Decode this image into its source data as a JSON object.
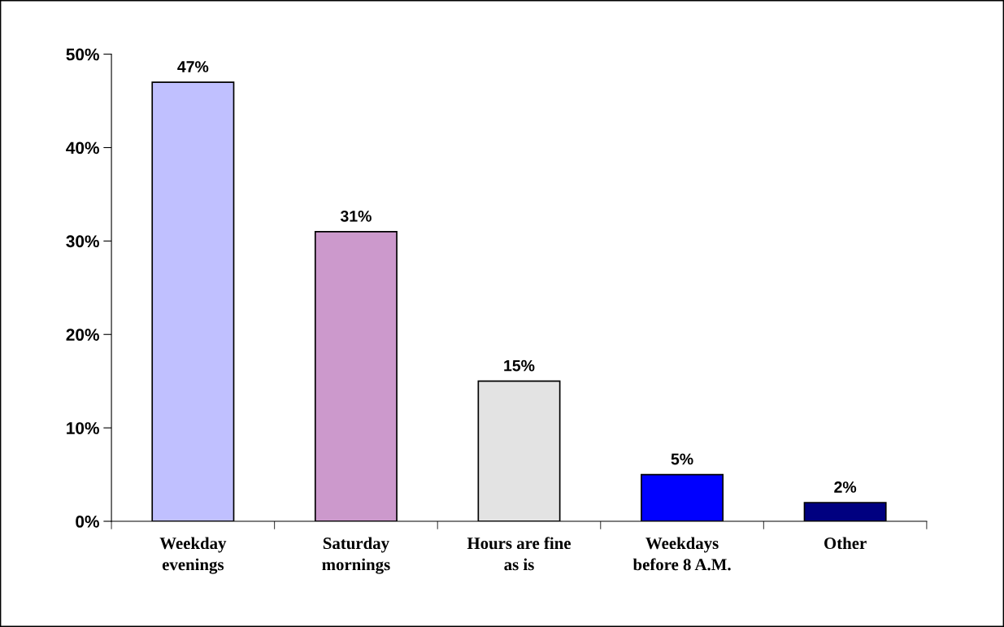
{
  "chart_data": {
    "type": "bar",
    "categories": [
      "Weekday\nevenings",
      "Saturday\nmornings",
      "Hours are fine\nas is",
      "Weekdays\nbefore 8 A.M.",
      "Other"
    ],
    "values": [
      47,
      31,
      15,
      5,
      2
    ],
    "colors": [
      "#c0c0ff",
      "#cc99cc",
      "#e3e3e3",
      "#0000ff",
      "#000080"
    ],
    "value_labels": [
      "47%",
      "31%",
      "15%",
      "5%",
      "2%"
    ],
    "ylim": [
      0,
      50
    ],
    "yticks": [
      {
        "value": 0,
        "label": "0%"
      },
      {
        "value": 10,
        "label": "10%"
      },
      {
        "value": 20,
        "label": "20%"
      },
      {
        "value": 30,
        "label": "30%"
      },
      {
        "value": 40,
        "label": "40%"
      },
      {
        "value": 50,
        "label": "50%"
      }
    ],
    "grid": false,
    "legend": false
  }
}
